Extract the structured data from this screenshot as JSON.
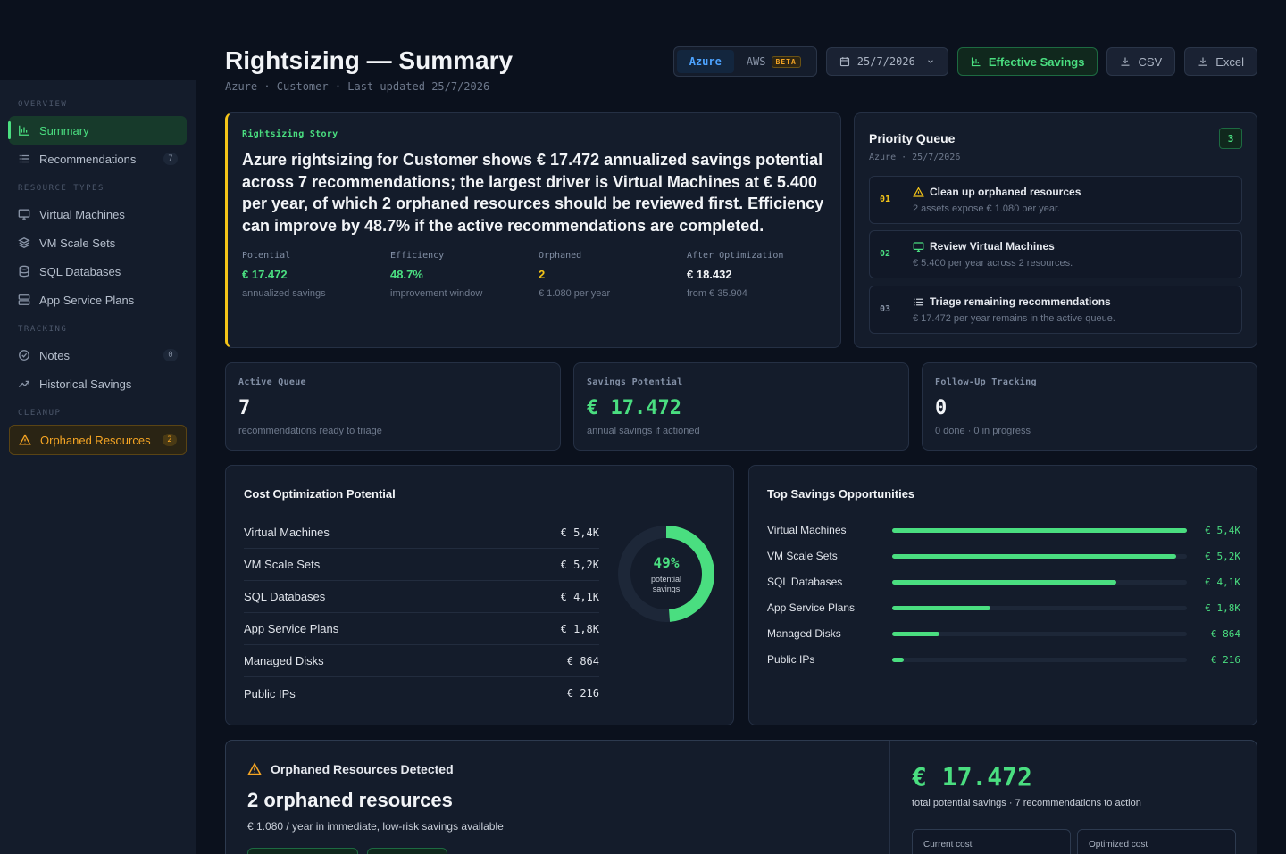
{
  "header": {
    "title": "Rightsizing — Summary",
    "subtitle": "Azure · Customer · Last updated 25/7/2026"
  },
  "toolbar": {
    "providers": [
      "Azure",
      "AWS"
    ],
    "beta_label": "BETA",
    "active_provider": "Azure",
    "date": "25/7/2026",
    "effective_savings": "Effective Savings",
    "csv": "CSV",
    "excel": "Excel"
  },
  "sidebar": {
    "sections": [
      {
        "label": "OVERVIEW",
        "items": [
          {
            "label": "Summary",
            "icon": "bar-chart-icon",
            "active": true
          },
          {
            "label": "Recommendations",
            "icon": "list-icon",
            "count": "7"
          }
        ]
      },
      {
        "label": "RESOURCE TYPES",
        "items": [
          {
            "label": "Virtual Machines",
            "icon": "monitor-icon"
          },
          {
            "label": "VM Scale Sets",
            "icon": "layers-icon"
          },
          {
            "label": "SQL Databases",
            "icon": "database-icon"
          },
          {
            "label": "App Service Plans",
            "icon": "server-icon"
          }
        ]
      },
      {
        "label": "TRACKING",
        "items": [
          {
            "label": "Notes",
            "icon": "check-circle-icon",
            "count": "0"
          },
          {
            "label": "Historical Savings",
            "icon": "trend-icon"
          }
        ]
      },
      {
        "label": "CLEANUP",
        "items": [
          {
            "label": "Orphaned Resources",
            "icon": "warning-icon",
            "count": "2",
            "warn": true
          }
        ]
      }
    ]
  },
  "story": {
    "kicker": "Rightsizing Story",
    "text": "Azure rightsizing for Customer shows € 17.472 annualized savings potential across 7 recommendations; the largest driver is Virtual Machines at € 5.400 per year, of which 2 orphaned resources should be reviewed first. Efficiency can improve by 48.7% if the active recommendations are completed.",
    "stats": [
      {
        "k": "Potential",
        "v": "€ 17.472",
        "s": "annualized savings",
        "color": "#4ade80"
      },
      {
        "k": "Efficiency",
        "v": "48.7%",
        "s": "improvement window",
        "color": "#4ade80"
      },
      {
        "k": "Orphaned",
        "v": "2",
        "s": "€ 1.080 per year",
        "color": "#f5c518"
      },
      {
        "k": "After Optimization",
        "v": "€ 18.432",
        "s": "from € 35.904",
        "color": "#f2f4f7"
      }
    ]
  },
  "priority_queue": {
    "title": "Priority Queue",
    "sub": "Azure · 25/7/2026",
    "count": "3",
    "items": [
      {
        "num": "01",
        "title": "Clean up orphaned resources",
        "desc": "2 assets expose € 1.080 per year.",
        "icon": "warning-icon"
      },
      {
        "num": "02",
        "title": "Review Virtual Machines",
        "desc": "€ 5.400 per year across 2 resources.",
        "icon": "monitor-icon"
      },
      {
        "num": "03",
        "title": "Triage remaining recommendations",
        "desc": "€ 17.472 per year remains in the active queue.",
        "icon": "list-icon"
      }
    ]
  },
  "kpis": [
    {
      "k": "Active Queue",
      "v": "7",
      "s": "recommendations ready to triage",
      "green": false
    },
    {
      "k": "Savings Potential",
      "v": "€ 17.472",
      "s": "annual savings if actioned",
      "green": true
    },
    {
      "k": "Follow-Up Tracking",
      "v": "0",
      "s": "0 done · 0 in progress",
      "green": false
    }
  ],
  "cost_optimization": {
    "title": "Cost Optimization Potential",
    "rows": [
      {
        "name": "Virtual Machines",
        "value": "€ 5,4K"
      },
      {
        "name": "VM Scale Sets",
        "value": "€ 5,2K"
      },
      {
        "name": "SQL Databases",
        "value": "€ 4,1K"
      },
      {
        "name": "App Service Plans",
        "value": "€ 1,8K"
      },
      {
        "name": "Managed Disks",
        "value": "€ 864"
      },
      {
        "name": "Public IPs",
        "value": "€ 216"
      }
    ],
    "donut_percent": "49%",
    "donut_fraction": 0.487,
    "donut_label": "potential savings"
  },
  "top_savings": {
    "title": "Top Savings Opportunities",
    "rows": [
      {
        "name": "Virtual Machines",
        "value": "€ 5,4K",
        "amount": 5400
      },
      {
        "name": "VM Scale Sets",
        "value": "€ 5,2K",
        "amount": 5200
      },
      {
        "name": "SQL Databases",
        "value": "€ 4,1K",
        "amount": 4100
      },
      {
        "name": "App Service Plans",
        "value": "€ 1,8K",
        "amount": 1800
      },
      {
        "name": "Managed Disks",
        "value": "€ 864",
        "amount": 864
      },
      {
        "name": "Public IPs",
        "value": "€ 216",
        "amount": 216
      }
    ]
  },
  "orphaned": {
    "title": "Orphaned Resources Detected",
    "big": "2 orphaned resources",
    "sub": "€ 1.080 / year in immediate, low-risk savings available",
    "total": "€ 17.472",
    "total_sub": "total potential savings · 7 recommendations to action",
    "current_cost_label": "Current cost",
    "optimized_cost_label": "Optimized cost"
  },
  "colors": {
    "accent": "#4ade80",
    "warning": "#f5a524",
    "story_border": "#f5c518",
    "azure": "#4da3ff"
  }
}
